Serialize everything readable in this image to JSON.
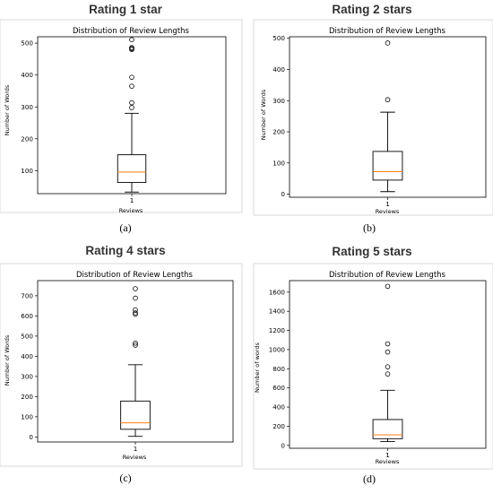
{
  "charts": [
    {
      "heading": "Rating 1 star",
      "caption": "(a)",
      "chart_data": {
        "type": "box",
        "title": "Distribution of Review Lengths",
        "xlabel": "Reviews",
        "ylabel": "Number of Words",
        "categories": [
          "1"
        ],
        "ylim": [
          28,
          520
        ],
        "yticks": [
          100,
          200,
          300,
          400,
          500
        ],
        "box": {
          "min": 33,
          "q1": 63,
          "median": 96,
          "q3": 150,
          "whisker_high": 280
        },
        "outliers": [
          298,
          313,
          365,
          393,
          480,
          483,
          486,
          511
        ],
        "colors": {
          "box": "#000000",
          "median": "#ff7f0e"
        }
      }
    },
    {
      "heading": "Rating 2 stars",
      "caption": "(b)",
      "chart_data": {
        "type": "box",
        "title": "Distribution of Review Lengths",
        "xlabel": "Reviews",
        "ylabel": "Number of Words",
        "categories": [
          "1"
        ],
        "ylim": [
          -10,
          505
        ],
        "yticks": [
          0,
          100,
          200,
          300,
          400,
          500
        ],
        "box": {
          "min": 8,
          "q1": 45,
          "median": 72,
          "q3": 137,
          "whisker_high": 263
        },
        "outliers": [
          303,
          485
        ],
        "colors": {
          "box": "#000000",
          "median": "#ff7f0e"
        }
      }
    },
    {
      "heading": "Rating 4 stars",
      "caption": "(c)",
      "chart_data": {
        "type": "box",
        "title": "Distribution of Review Lengths",
        "xlabel": "Reviews",
        "ylabel": "Number of Words",
        "categories": [
          "1"
        ],
        "ylim": [
          -25,
          775
        ],
        "yticks": [
          0,
          100,
          200,
          300,
          400,
          500,
          600,
          700
        ],
        "box": {
          "min": 3,
          "q1": 38,
          "median": 70,
          "q3": 178,
          "whisker_high": 358
        },
        "outliers": [
          455,
          465,
          608,
          615,
          630,
          688,
          735
        ],
        "colors": {
          "box": "#000000",
          "median": "#ff7f0e"
        }
      }
    },
    {
      "heading": "Rating 5 stars",
      "caption": "(d)",
      "chart_data": {
        "type": "box",
        "title": "Distribution of Review Lengths",
        "xlabel": "Reviews",
        "ylabel": "Number of words",
        "categories": [
          "1"
        ],
        "ylim": [
          -30,
          1720
        ],
        "yticks": [
          0,
          200,
          400,
          600,
          800,
          1000,
          1200,
          1400,
          1600
        ],
        "box": {
          "min": 40,
          "q1": 70,
          "median": 110,
          "q3": 270,
          "whisker_high": 575
        },
        "outliers": [
          745,
          820,
          975,
          1060,
          1660
        ],
        "colors": {
          "box": "#000000",
          "median": "#ff7f0e"
        }
      }
    }
  ]
}
